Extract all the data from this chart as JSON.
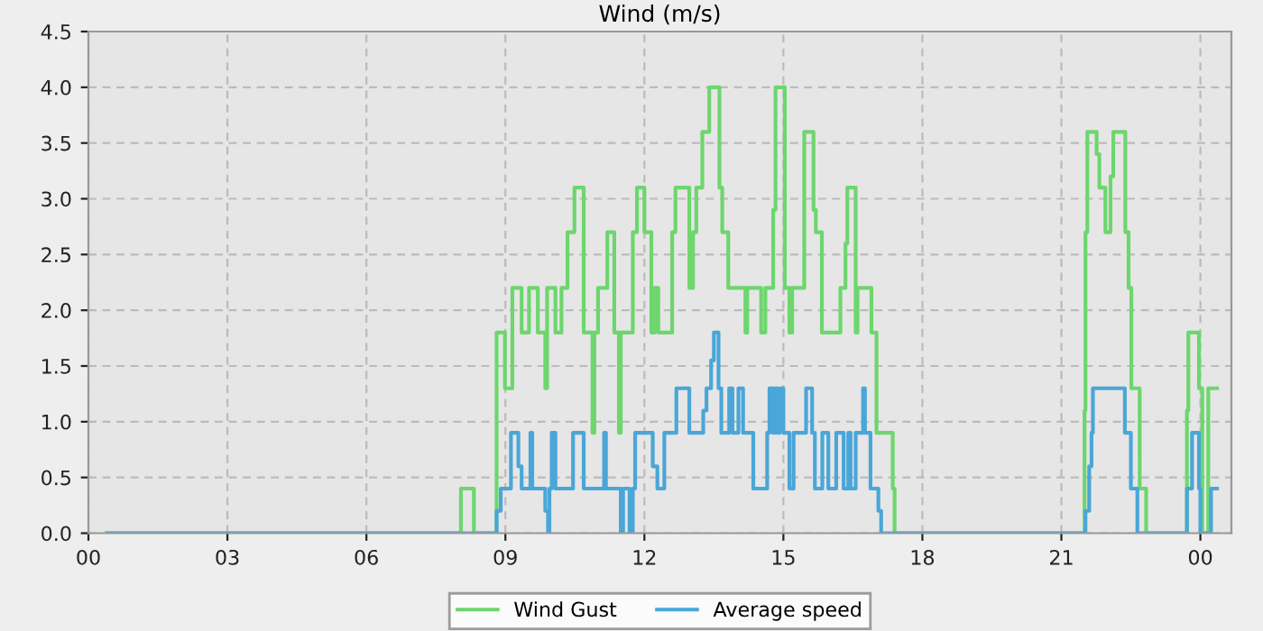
{
  "chart_data": {
    "type": "step",
    "title": "Wind (m/s)",
    "xlim": [
      0,
      24.67
    ],
    "ylim": [
      0,
      4.5
    ],
    "xticks": [
      {
        "value": 0,
        "label": "00"
      },
      {
        "value": 3,
        "label": "03"
      },
      {
        "value": 6,
        "label": "06"
      },
      {
        "value": 9,
        "label": "09"
      },
      {
        "value": 12,
        "label": "12"
      },
      {
        "value": 15,
        "label": "15"
      },
      {
        "value": 18,
        "label": "18"
      },
      {
        "value": 21,
        "label": "21"
      },
      {
        "value": 24,
        "label": "00"
      }
    ],
    "yticks": [
      {
        "value": 0,
        "label": "0.0"
      },
      {
        "value": 0.5,
        "label": "0.5"
      },
      {
        "value": 1,
        "label": "1.0"
      },
      {
        "value": 1.5,
        "label": "1.5"
      },
      {
        "value": 2,
        "label": "2.0"
      },
      {
        "value": 2.5,
        "label": "2.5"
      },
      {
        "value": 3,
        "label": "3.0"
      },
      {
        "value": 3.5,
        "label": "3.5"
      },
      {
        "value": 4,
        "label": "4.0"
      },
      {
        "value": 4.5,
        "label": "4.5"
      }
    ],
    "grid": true,
    "legend": "bottom",
    "series": [
      {
        "name": "Wind Gust",
        "color": "#6dd66d",
        "x": [
          0.4,
          8.04,
          8.32,
          8.81,
          8.99,
          9.15,
          9.35,
          9.51,
          9.7,
          9.86,
          9.9,
          10.08,
          10.21,
          10.34,
          10.49,
          10.69,
          10.88,
          10.92,
          11.0,
          11.2,
          11.35,
          11.45,
          11.49,
          11.52,
          11.75,
          11.84,
          12.0,
          12.15,
          12.22,
          12.3,
          12.6,
          12.67,
          12.97,
          13.05,
          13.12,
          13.25,
          13.4,
          13.62,
          13.68,
          13.81,
          14.18,
          14.22,
          14.52,
          14.61,
          14.78,
          14.83,
          15.03,
          15.13,
          15.19,
          15.45,
          15.65,
          15.7,
          15.83,
          16.23,
          16.34,
          16.38,
          16.56,
          16.6,
          16.9,
          17.01,
          17.36,
          17.4,
          21.5,
          21.52,
          21.56,
          21.6,
          21.76,
          21.82,
          21.95,
          22.06,
          22.12,
          22.38,
          22.45,
          22.51,
          22.69,
          22.83,
          23.71,
          23.74,
          23.97,
          24.04,
          24.17,
          24.36
        ],
        "values": [
          0,
          0.4,
          0,
          1.8,
          1.3,
          2.2,
          1.8,
          2.2,
          1.8,
          1.3,
          2.2,
          1.8,
          2.2,
          2.7,
          3.1,
          1.8,
          0.9,
          1.8,
          2.2,
          2.7,
          1.8,
          0.9,
          1.8,
          1.8,
          2.7,
          3.1,
          2.7,
          1.8,
          2.2,
          1.8,
          2.7,
          3.1,
          2.2,
          2.7,
          3.1,
          3.6,
          4.0,
          3.1,
          2.7,
          2.2,
          1.8,
          2.2,
          1.8,
          2.2,
          2.9,
          4.0,
          2.2,
          1.8,
          2.2,
          3.6,
          2.9,
          2.7,
          1.8,
          2.2,
          2.6,
          3.1,
          1.8,
          2.2,
          1.8,
          0.9,
          0.4,
          0,
          1.1,
          2.7,
          3.6,
          3.6,
          3.4,
          3.1,
          2.7,
          3.2,
          3.6,
          2.7,
          2.2,
          1.3,
          0.4,
          0,
          1.1,
          1.8,
          1.3,
          0,
          1.3,
          1.3
        ]
      },
      {
        "name": "Average speed",
        "color": "#4aa6d8",
        "x": [
          0.4,
          8.81,
          8.9,
          9.12,
          9.28,
          9.35,
          9.54,
          9.58,
          9.86,
          9.92,
          9.95,
          10.0,
          10.08,
          10.46,
          10.69,
          11.13,
          11.17,
          11.49,
          11.54,
          11.68,
          11.75,
          11.8,
          12.18,
          12.28,
          12.43,
          12.69,
          12.97,
          13.27,
          13.34,
          13.44,
          13.5,
          13.6,
          13.66,
          13.83,
          13.9,
          14.03,
          14.13,
          14.35,
          14.65,
          14.7,
          14.78,
          14.82,
          14.88,
          14.92,
          15.0,
          15.13,
          15.22,
          15.49,
          15.62,
          15.68,
          15.84,
          15.97,
          16.14,
          16.3,
          16.4,
          16.45,
          16.56,
          16.72,
          16.76,
          16.88,
          17.05,
          17.11,
          21.52,
          21.6,
          21.65,
          21.68,
          22.37,
          22.5,
          22.64,
          23.71,
          23.82,
          23.97,
          24.0,
          24.23,
          24.36
        ],
        "values": [
          0,
          0.2,
          0.4,
          0.9,
          0.6,
          0.4,
          0.9,
          0.4,
          0.2,
          0,
          0.4,
          0.9,
          0.4,
          0.9,
          0.4,
          0.9,
          0.4,
          0,
          0.4,
          0,
          0.4,
          0.9,
          0.6,
          0.4,
          0.9,
          1.3,
          0.9,
          1.1,
          1.3,
          1.55,
          1.8,
          1.3,
          0.9,
          1.3,
          0.9,
          1.3,
          0.9,
          0.4,
          0.9,
          1.3,
          0.9,
          1.3,
          0.9,
          1.3,
          0.9,
          0.4,
          0.9,
          1.3,
          0.9,
          0.4,
          0.9,
          0.4,
          0.9,
          0.4,
          0.9,
          0.4,
          0.9,
          1.3,
          0.9,
          0.4,
          0.2,
          0,
          0.2,
          0.6,
          0.9,
          1.3,
          0.9,
          0.4,
          0,
          0.4,
          0.9,
          0.4,
          0,
          0.4,
          0.4
        ]
      }
    ]
  }
}
